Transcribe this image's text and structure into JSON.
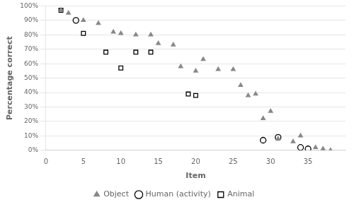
{
  "chart_data": {
    "type": "scatter",
    "x_label": "Item",
    "y_label": "Percentage correct",
    "xlim": [
      0,
      40
    ],
    "ylim": [
      0.0,
      1.0
    ],
    "xticks": [
      0,
      5,
      10,
      15,
      20,
      25,
      30,
      35
    ],
    "yticks": [
      {
        "value": 0.0,
        "label": "0%"
      },
      {
        "value": 0.1,
        "label": "10%"
      },
      {
        "value": 0.2,
        "label": "20%"
      },
      {
        "value": 0.3,
        "label": "30%"
      },
      {
        "value": 0.4,
        "label": "40%"
      },
      {
        "value": 0.5,
        "label": "50%"
      },
      {
        "value": 0.6,
        "label": "60%"
      },
      {
        "value": 0.7,
        "label": "70%"
      },
      {
        "value": 0.8,
        "label": "80%"
      },
      {
        "value": 0.9,
        "label": "90%"
      },
      {
        "value": 1.0,
        "label": "100%"
      }
    ],
    "grid": "y",
    "legend": "bottom",
    "series": [
      {
        "name": "Object",
        "color": "#888888",
        "marker": "triangle",
        "x": [
          2,
          3,
          5,
          7,
          9,
          10,
          12,
          14,
          15,
          17,
          18,
          20,
          21,
          23,
          25,
          26,
          27,
          28,
          29,
          30,
          31,
          33,
          34,
          36,
          37,
          38
        ],
        "values": [
          0.97,
          0.95,
          0.9,
          0.88,
          0.82,
          0.81,
          0.8,
          0.8,
          0.74,
          0.73,
          0.58,
          0.55,
          0.63,
          0.56,
          0.56,
          0.45,
          0.38,
          0.39,
          0.22,
          0.27,
          0.08,
          0.06,
          0.1,
          0.02,
          0.01,
          0.0
        ]
      },
      {
        "name": "Human (activity)",
        "color": "#000000",
        "marker": "circle-open",
        "x": [
          4,
          29,
          31,
          34,
          35
        ],
        "values": [
          0.9,
          0.07,
          0.09,
          0.02,
          0.01
        ]
      },
      {
        "name": "Animal",
        "color": "#000000",
        "marker": "square-open",
        "x": [
          2,
          5,
          8,
          10,
          12,
          14,
          19,
          20
        ],
        "values": [
          0.97,
          0.81,
          0.68,
          0.57,
          0.68,
          0.68,
          0.39,
          0.38
        ]
      }
    ]
  }
}
